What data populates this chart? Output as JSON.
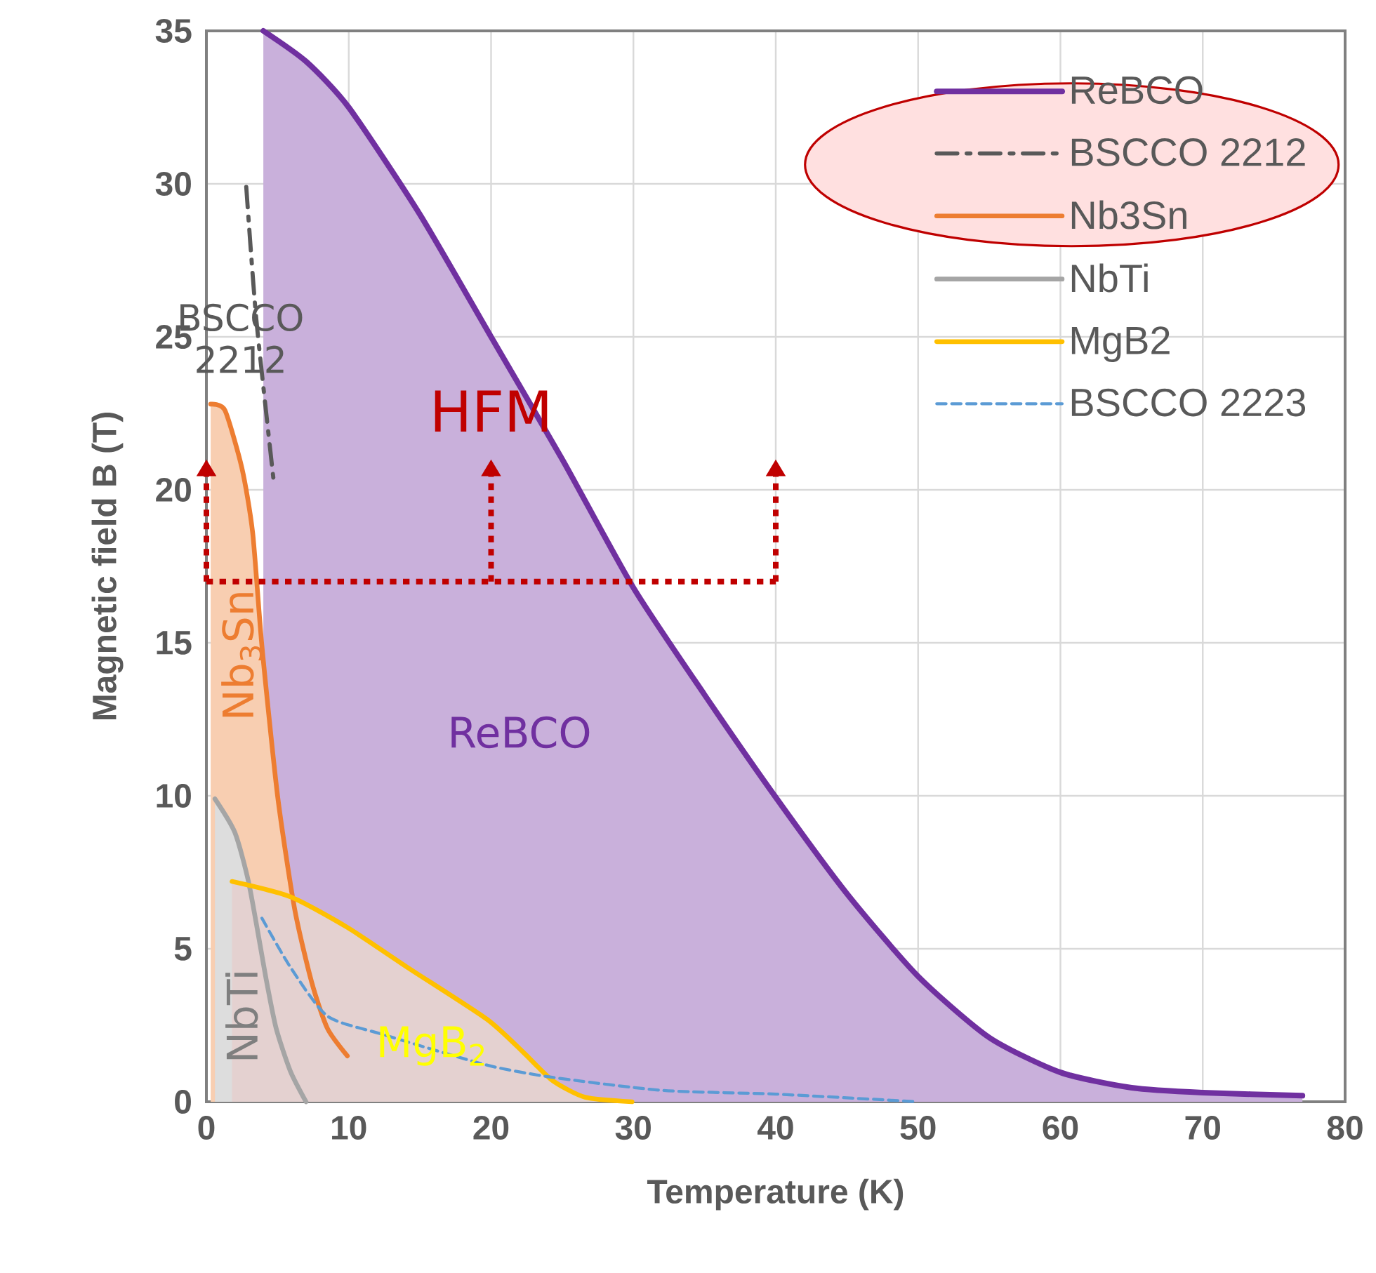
{
  "chart_data": {
    "type": "line",
    "xlabel": "Temperature (K)",
    "ylabel": "Magnetic field B (T)",
    "xlim": [
      0,
      80
    ],
    "ylim": [
      0,
      35
    ],
    "xticks": [
      0,
      10,
      20,
      30,
      40,
      50,
      60,
      70,
      80
    ],
    "yticks": [
      0,
      5,
      10,
      15,
      20,
      25,
      30,
      35
    ],
    "grid": true,
    "legend": "top right",
    "series": [
      {
        "name": "ReBCO",
        "type": "area",
        "color": "#7030a0",
        "x": [
          4,
          7,
          10,
          15,
          20,
          25,
          30,
          35,
          40,
          45,
          50,
          55,
          60,
          65,
          70,
          77
        ],
        "values": [
          35,
          34,
          32.5,
          29,
          25,
          21,
          16.8,
          13.3,
          9.95,
          6.8,
          4.1,
          2.1,
          0.96,
          0.46,
          0.3,
          0.2
        ]
      },
      {
        "name": "BSCCO 2212",
        "line_style": "dashdot",
        "color": "#595959",
        "x": [
          2.8,
          3.5,
          4.7
        ],
        "values": [
          29.9,
          25.6,
          20.4
        ]
      },
      {
        "name": "Nb3Sn",
        "type": "area",
        "color": "#ed7d31",
        "x": [
          0.3,
          1.3,
          2.5,
          3.25,
          3.9,
          5.0,
          6.2,
          7.4,
          8.5,
          9.9
        ],
        "values": [
          22.8,
          22.6,
          20.7,
          18.6,
          14.9,
          10,
          6.3,
          3.9,
          2.4,
          1.5
        ]
      },
      {
        "name": "NbTi",
        "type": "area",
        "color": "#a5a5a5",
        "x": [
          0.6,
          2.0,
          3.0,
          4.2,
          4.9,
          5.9,
          7.0
        ],
        "values": [
          9.9,
          8.8,
          7.1,
          4.0,
          2.4,
          1.0,
          0
        ]
      },
      {
        "name": "MgB2",
        "type": "area",
        "color": "#ffc000",
        "x": [
          1.8,
          5.9,
          9.9,
          14.1,
          19.7,
          22.3,
          24.3,
          26.6,
          29.9
        ],
        "values": [
          7.2,
          6.7,
          5.7,
          4.4,
          2.7,
          1.6,
          0.7,
          0.15,
          0
        ]
      },
      {
        "name": "BSCCO 2223",
        "line_style": "dashed",
        "color": "#5b9bd5",
        "x": [
          3.9,
          5.9,
          8.5,
          12.4,
          19.7,
          24.3,
          32.1,
          40,
          50
        ],
        "values": [
          6.0,
          4.4,
          2.8,
          2.2,
          1.2,
          0.8,
          0.37,
          0.25,
          0
        ]
      }
    ],
    "annotations": [
      "HFM",
      "BSCCO 2212",
      "ReBCO",
      "Nb$_{3}$Sn",
      "NbTi",
      "MgB$_{2}$"
    ]
  }
}
